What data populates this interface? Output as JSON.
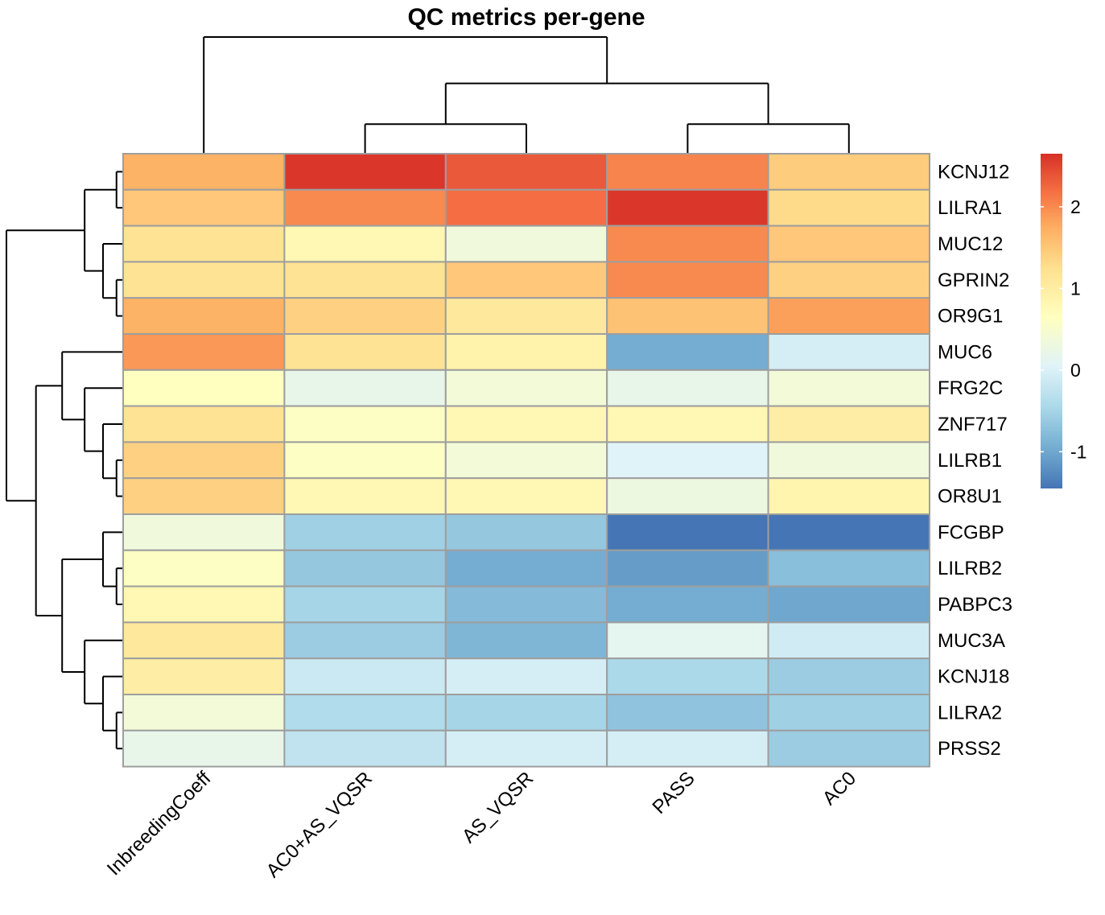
{
  "chart_data": {
    "type": "heatmap",
    "title": "QC metrics per-gene",
    "columns": [
      "InbreedingCoeff",
      "AC0+AS_VQSR",
      "AS_VQSR",
      "PASS",
      "AC0"
    ],
    "rows": [
      "KCNJ12",
      "LILRA1",
      "MUC12",
      "GPRIN2",
      "OR9G1",
      "MUC6",
      "FRG2C",
      "ZNF717",
      "LILRB1",
      "OR8U1",
      "FCGBP",
      "LILRB2",
      "PABPC3",
      "MUC3A",
      "KCNJ18",
      "LILRA2",
      "PRSS2"
    ],
    "values": [
      [
        1.7,
        2.6,
        2.35,
        2.05,
        1.45
      ],
      [
        1.5,
        2.0,
        2.2,
        2.6,
        1.3
      ],
      [
        1.2,
        0.8,
        0.35,
        2.0,
        1.5
      ],
      [
        1.2,
        1.2,
        1.5,
        2.0,
        1.4
      ],
      [
        1.7,
        1.4,
        1.1,
        1.55,
        1.85
      ],
      [
        1.9,
        1.2,
        0.9,
        -0.95,
        -0.05
      ],
      [
        0.65,
        0.2,
        0.4,
        0.2,
        0.4
      ],
      [
        1.2,
        0.6,
        0.8,
        0.8,
        1.0
      ],
      [
        1.4,
        0.6,
        0.4,
        0.05,
        0.35
      ],
      [
        1.4,
        0.8,
        0.8,
        0.3,
        0.85
      ],
      [
        0.35,
        -0.55,
        -0.65,
        -1.45,
        -1.45
      ],
      [
        0.6,
        -0.65,
        -0.95,
        -1.1,
        -0.75
      ],
      [
        0.8,
        -0.5,
        -0.8,
        -0.95,
        -1.0
      ],
      [
        1.1,
        -0.6,
        -0.85,
        0.15,
        -0.1
      ],
      [
        1.0,
        -0.15,
        -0.05,
        -0.45,
        -0.6
      ],
      [
        0.4,
        -0.4,
        -0.5,
        -0.7,
        -0.55
      ],
      [
        0.2,
        -0.25,
        -0.05,
        -0.05,
        -0.6
      ]
    ],
    "color_scale": {
      "min": -1.45,
      "max": 2.65,
      "stops": [
        {
          "value": -1.45,
          "color": "#4575b4"
        },
        {
          "value": -0.95,
          "color": "#74add1"
        },
        {
          "value": -0.45,
          "color": "#abd9e9"
        },
        {
          "value": 0.05,
          "color": "#e0f3f8"
        },
        {
          "value": 0.65,
          "color": "#ffffbf"
        },
        {
          "value": 1.25,
          "color": "#fee090"
        },
        {
          "value": 1.75,
          "color": "#fdae61"
        },
        {
          "value": 2.2,
          "color": "#f46d43"
        },
        {
          "value": 2.65,
          "color": "#d73027"
        }
      ],
      "ticks": [
        -1,
        0,
        1,
        2
      ]
    },
    "column_dendrogram": [
      "InbreedingCoeff",
      [
        [
          "AC0+AS_VQSR",
          "AS_VQSR"
        ],
        [
          "PASS",
          "AC0"
        ]
      ]
    ],
    "row_dendrogram": [
      [
        [
          "KCNJ12",
          "LILRA1"
        ],
        [
          "MUC12",
          [
            "GPRIN2",
            "OR9G1"
          ]
        ]
      ],
      [
        [
          "MUC6",
          [
            "FRG2C",
            [
              "ZNF717",
              [
                "LILRB1",
                "OR8U1"
              ]
            ]
          ]
        ],
        [
          [
            "FCGBP",
            [
              "LILRB2",
              "PABPC3"
            ]
          ],
          [
            "MUC3A",
            [
              "KCNJ18",
              [
                "LILRA2",
                "PRSS2"
              ]
            ]
          ]
        ]
      ]
    ]
  }
}
